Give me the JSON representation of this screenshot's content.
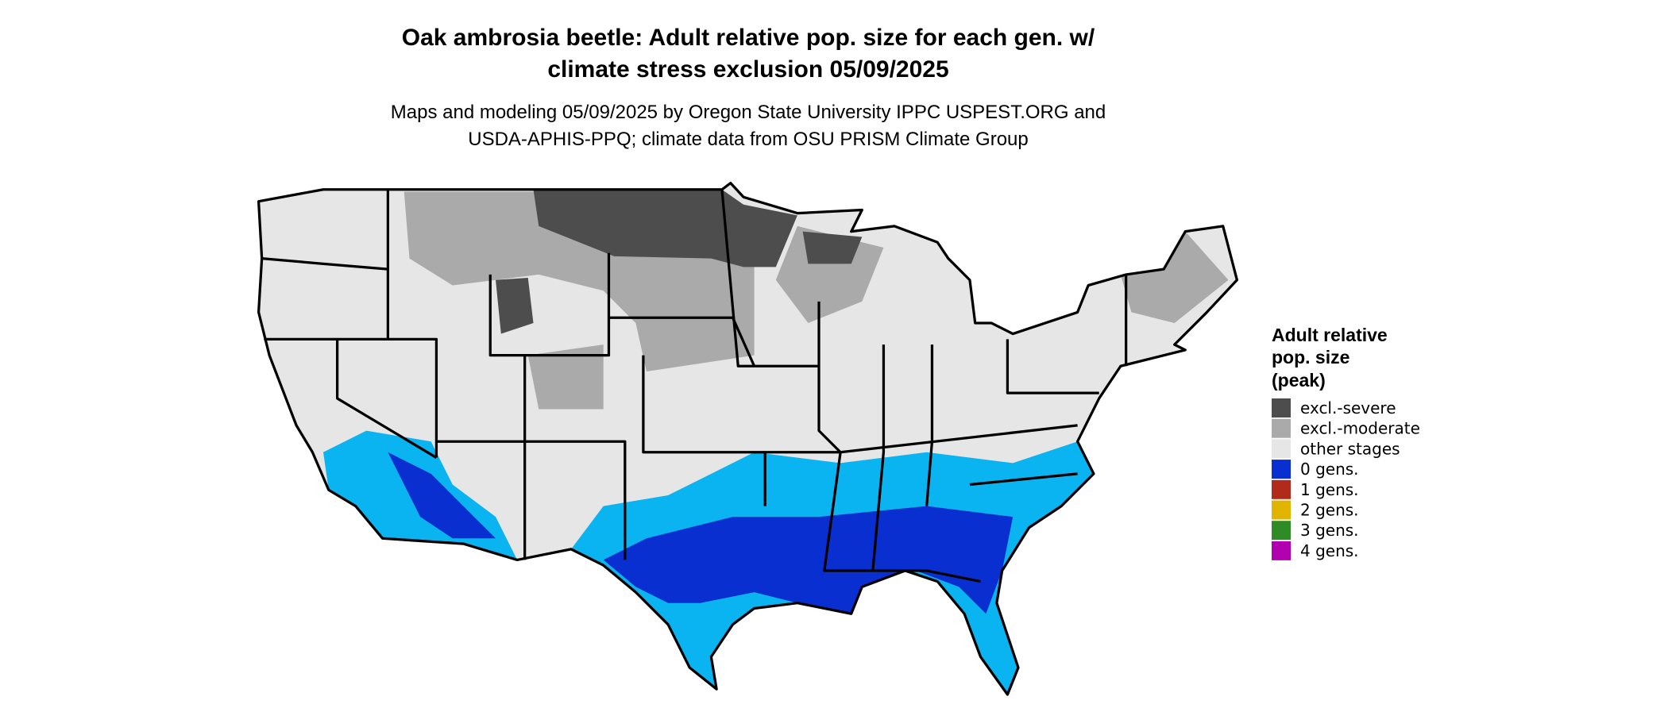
{
  "header": {
    "title_lines": [
      "Oak ambrosia beetle: Adult relative pop. size for each gen. w/",
      "climate stress exclusion 05/09/2025"
    ],
    "subtitle_lines": [
      "Maps and modeling 05/09/2025 by Oregon State University IPPC USPEST.ORG and",
      "USDA-APHIS-PPQ; climate data from OSU PRISM Climate Group"
    ]
  },
  "legend": {
    "title_lines": [
      "Adult relative",
      "pop. size",
      "(peak)"
    ],
    "items": [
      {
        "label": "excl.-severe",
        "color": "#4d4d4d"
      },
      {
        "label": "excl.-moderate",
        "color": "#aaaaaa"
      },
      {
        "label": "other stages",
        "color": "#e6e6e6"
      },
      {
        "label": "0 gens.",
        "color": "#0a2fd0"
      },
      {
        "label": "1 gens.",
        "color": "#b22a1a"
      },
      {
        "label": "2 gens.",
        "color": "#e0b400"
      },
      {
        "label": "3 gens.",
        "color": "#2e8b26"
      },
      {
        "label": "4 gens.",
        "color": "#b000b0"
      }
    ]
  }
}
